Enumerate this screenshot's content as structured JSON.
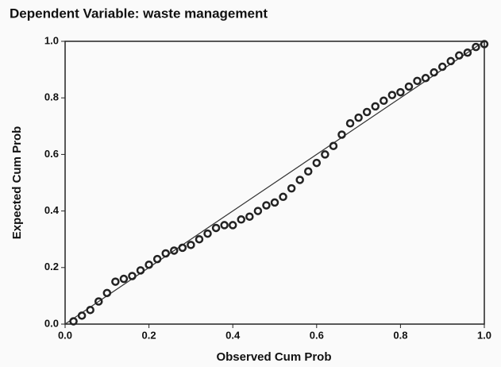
{
  "chart_data": {
    "type": "scatter",
    "title": "Dependent Variable: waste management",
    "xlabel": "Observed Cum Prob",
    "ylabel": "Expected Cum Prob",
    "color": "#222222",
    "x": [
      0.02,
      0.04,
      0.06,
      0.08,
      0.1,
      0.12,
      0.14,
      0.16,
      0.18,
      0.2,
      0.22,
      0.24,
      0.26,
      0.28,
      0.3,
      0.32,
      0.34,
      0.36,
      0.38,
      0.4,
      0.42,
      0.44,
      0.46,
      0.48,
      0.5,
      0.52,
      0.54,
      0.56,
      0.58,
      0.6,
      0.62,
      0.64,
      0.66,
      0.68,
      0.7,
      0.72,
      0.74,
      0.76,
      0.78,
      0.8,
      0.82,
      0.84,
      0.86,
      0.88,
      0.9,
      0.92,
      0.94,
      0.96,
      0.98,
      1.0
    ],
    "values": [
      0.01,
      0.03,
      0.05,
      0.08,
      0.11,
      0.15,
      0.16,
      0.17,
      0.19,
      0.21,
      0.23,
      0.25,
      0.26,
      0.27,
      0.28,
      0.3,
      0.32,
      0.34,
      0.35,
      0.35,
      0.37,
      0.38,
      0.4,
      0.42,
      0.43,
      0.45,
      0.48,
      0.51,
      0.54,
      0.57,
      0.6,
      0.63,
      0.67,
      0.71,
      0.73,
      0.75,
      0.77,
      0.79,
      0.81,
      0.82,
      0.84,
      0.86,
      0.87,
      0.89,
      0.91,
      0.93,
      0.95,
      0.96,
      0.98,
      0.99
    ],
    "xlim": [
      0,
      1
    ],
    "ylim": [
      0,
      1
    ],
    "xticks": [
      {
        "value": 0,
        "label": "0.0"
      },
      0.2,
      0.4,
      0.6,
      0.8,
      {
        "value": 1,
        "label": "1.0"
      }
    ],
    "yticks": [
      {
        "value": 0,
        "label": "0.0"
      },
      0.2,
      0.4,
      0.6,
      0.8,
      {
        "value": 1,
        "label": "1.0"
      }
    ],
    "grid": false
  }
}
